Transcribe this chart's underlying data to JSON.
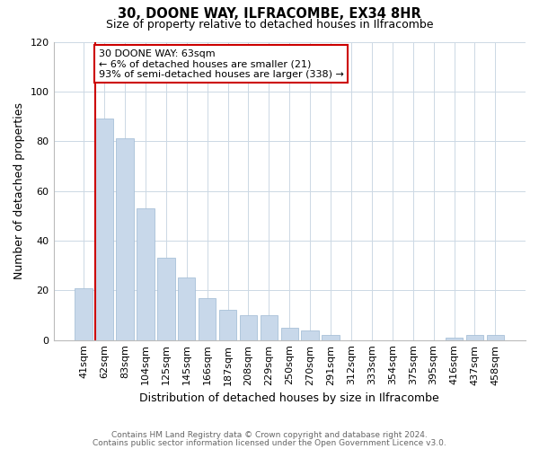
{
  "title": "30, DOONE WAY, ILFRACOMBE, EX34 8HR",
  "subtitle": "Size of property relative to detached houses in Ilfracombe",
  "xlabel": "Distribution of detached houses by size in Ilfracombe",
  "ylabel": "Number of detached properties",
  "bar_color": "#c8d8ea",
  "bar_edge_color": "#a8c0d8",
  "categories": [
    "41sqm",
    "62sqm",
    "83sqm",
    "104sqm",
    "125sqm",
    "145sqm",
    "166sqm",
    "187sqm",
    "208sqm",
    "229sqm",
    "250sqm",
    "270sqm",
    "291sqm",
    "312sqm",
    "333sqm",
    "354sqm",
    "375sqm",
    "395sqm",
    "416sqm",
    "437sqm",
    "458sqm"
  ],
  "values": [
    21,
    89,
    81,
    53,
    33,
    25,
    17,
    12,
    10,
    10,
    5,
    4,
    2,
    0,
    0,
    0,
    0,
    0,
    1,
    2,
    2
  ],
  "ylim": [
    0,
    120
  ],
  "yticks": [
    0,
    20,
    40,
    60,
    80,
    100,
    120
  ],
  "marker_index": 1,
  "marker_color": "#cc0000",
  "annotation_text": "30 DOONE WAY: 63sqm\n← 6% of detached houses are smaller (21)\n93% of semi-detached houses are larger (338) →",
  "annotation_box_color": "#ffffff",
  "annotation_box_edge": "#cc0000",
  "footer1": "Contains HM Land Registry data © Crown copyright and database right 2024.",
  "footer2": "Contains public sector information licensed under the Open Government Licence v3.0.",
  "background_color": "#ffffff",
  "grid_color": "#ccd8e4"
}
